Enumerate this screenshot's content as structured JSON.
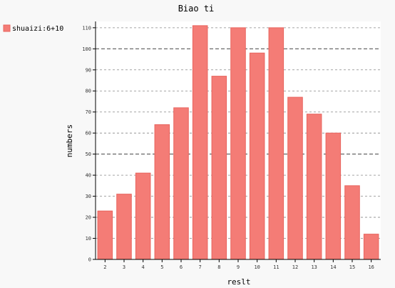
{
  "chart_data": {
    "type": "bar",
    "title": "Biao ti",
    "xlabel": "reslt",
    "ylabel": "numbers",
    "categories": [
      "2",
      "3",
      "4",
      "5",
      "6",
      "7",
      "8",
      "9",
      "10",
      "11",
      "12",
      "13",
      "14",
      "15",
      "16"
    ],
    "series": [
      {
        "name": "shuaizi:6+10",
        "values": [
          23,
          31,
          41,
          64,
          72,
          111,
          87,
          110,
          98,
          110,
          77,
          69,
          60,
          35,
          12
        ]
      }
    ],
    "ylim": [
      0,
      113
    ],
    "yticks": [
      0,
      10,
      20,
      30,
      40,
      50,
      60,
      70,
      80,
      90,
      100,
      110
    ],
    "major_yticks": [
      50,
      100
    ],
    "grid": "horizontal dashed",
    "legend_position": "left",
    "colors": {
      "bar_fill": "#f47c76",
      "bar_stroke": "#e8645e",
      "plot_bg": "#ffffff",
      "page_bg": "#f8f8f8",
      "grid": "#888888"
    }
  }
}
